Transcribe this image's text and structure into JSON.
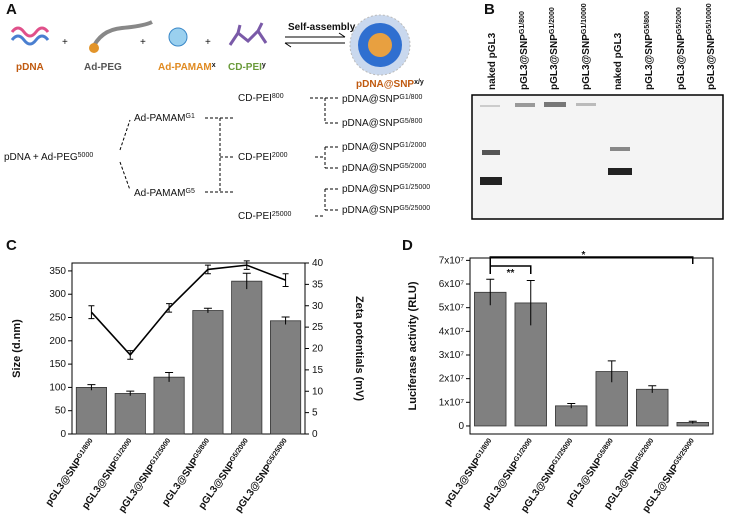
{
  "panel_a": {
    "label": "A",
    "components": [
      {
        "text": "pDNA"
      },
      {
        "text": "Ad-PEG"
      },
      {
        "text": "Ad-PAMAM",
        "sup": "x"
      },
      {
        "text": "CD-PEI",
        "sup": "y"
      }
    ],
    "plus": "+",
    "arrow_label": "Self-assembly",
    "product": {
      "text": "pDNA@SNP",
      "sup": "x/y"
    },
    "tree": {
      "root": {
        "text": "pDNA  +  Ad-PEG",
        "sup": "5000"
      },
      "pamam": [
        {
          "text": "Ad-PAMAM",
          "sup": "G1"
        },
        {
          "text": "Ad-PAMAM",
          "sup": "G5"
        }
      ],
      "pei": [
        {
          "text": "CD-PEI",
          "sup": "800"
        },
        {
          "text": "CD-PEI",
          "sup": "2000"
        },
        {
          "text": "CD-PEI",
          "sup": "25000"
        }
      ],
      "products": [
        {
          "text": "pDNA@SNP",
          "sup": "G1/800"
        },
        {
          "text": "pDNA@SNP",
          "sup": "G5/800"
        },
        {
          "text": "pDNA@SNP",
          "sup": "G1/2000"
        },
        {
          "text": "pDNA@SNP",
          "sup": "G5/2000"
        },
        {
          "text": "pDNA@SNP",
          "sup": "G1/25000"
        },
        {
          "text": "pDNA@SNP",
          "sup": "G5/25000"
        }
      ]
    }
  },
  "panel_b": {
    "label": "B",
    "lanes": [
      {
        "text": "naked pGL3"
      },
      {
        "text": "pGL3@SNP",
        "sup": "G1/800"
      },
      {
        "text": "pGL3@SNP",
        "sup": "G1/2000"
      },
      {
        "text": "pGL3@SNP",
        "sup": "G1/10000"
      },
      {
        "text": "naked pGL3"
      },
      {
        "text": "pGL3@SNP",
        "sup": "G5/800"
      },
      {
        "text": "pGL3@SNP",
        "sup": "G5/2000"
      },
      {
        "text": "pGL3@SNP",
        "sup": "G5/10000"
      }
    ]
  },
  "chart_data": [
    {
      "type": "bar",
      "panel_label": "C",
      "ylabel": "Size (d.nm)",
      "y2label": "Zeta potentials (mV)",
      "category_prefix": "pGL3@SNP",
      "categories": [
        "G1/800",
        "G1/2000",
        "G1/25000",
        "G5/800",
        "G5/2000",
        "G5/25000"
      ],
      "series": [
        {
          "type": "bar",
          "color": "#808080",
          "values": [
            100,
            87,
            122,
            265,
            328,
            243
          ],
          "errors": [
            6,
            5,
            10,
            5,
            17,
            8
          ]
        },
        {
          "type": "line",
          "axis": "y2",
          "color": "#000000",
          "values": [
            28.5,
            18.5,
            29.5,
            38.5,
            39.5,
            36
          ],
          "errors": [
            1.5,
            1,
            1,
            1,
            1,
            1.5
          ]
        }
      ],
      "ylim": [
        0,
        367
      ],
      "yticks": [
        0,
        50,
        100,
        150,
        200,
        250,
        300,
        350
      ],
      "y2lim": [
        0,
        40
      ],
      "y2ticks": [
        0,
        5,
        10,
        15,
        20,
        25,
        30,
        35,
        40
      ]
    },
    {
      "type": "bar",
      "panel_label": "D",
      "ylabel": "Luciferase activity (RLU)",
      "category_prefix": "pGL3@SNP",
      "categories": [
        "G1/800",
        "G1/2000",
        "G1/25000",
        "G5/800",
        "G5/2000",
        "G5/25000"
      ],
      "series": [
        {
          "type": "bar",
          "color": "#808080",
          "values": [
            56500000,
            52000000,
            8500000,
            23000000,
            15500000,
            1500000
          ],
          "errors": [
            5500000,
            9500000,
            1000000,
            4500000,
            1500000,
            500000
          ]
        }
      ],
      "ylim": [
        -3400000,
        71000000
      ],
      "yticks": [
        {
          "value": 0,
          "label": "0"
        },
        {
          "value": 10000000,
          "label": "1x10⁷"
        },
        {
          "value": 20000000,
          "label": "2x10⁷"
        },
        {
          "value": 30000000,
          "label": "3x10⁷"
        },
        {
          "value": 40000000,
          "label": "4x10⁷"
        },
        {
          "value": 50000000,
          "label": "5x10⁷"
        },
        {
          "value": 60000000,
          "label": "6x10⁷"
        },
        {
          "value": 70000000,
          "label": "7x10⁷"
        }
      ],
      "annotations": [
        "**",
        "*"
      ]
    }
  ]
}
